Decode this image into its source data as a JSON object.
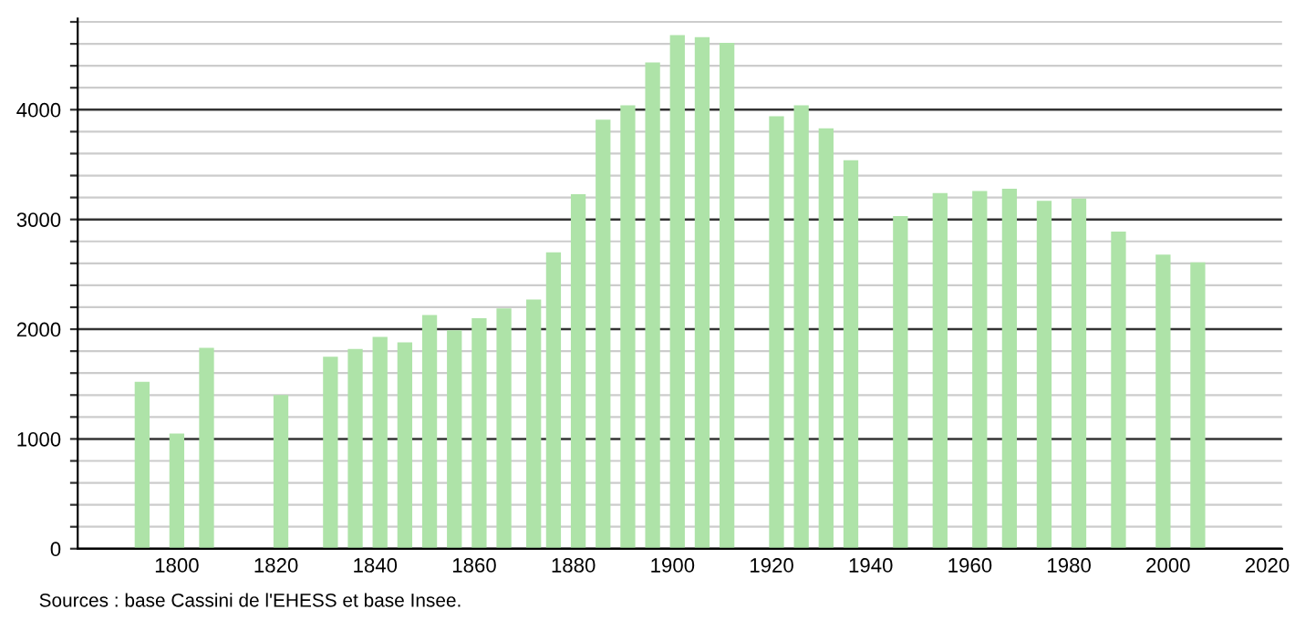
{
  "chart_data": {
    "type": "bar",
    "x": [
      1793,
      1800,
      1806,
      1821,
      1831,
      1836,
      1841,
      1846,
      1851,
      1856,
      1861,
      1866,
      1872,
      1876,
      1881,
      1886,
      1891,
      1896,
      1901,
      1906,
      1911,
      1921,
      1926,
      1931,
      1936,
      1946,
      1954,
      1962,
      1968,
      1975,
      1982,
      1990,
      1999,
      2006
    ],
    "values": [
      1520,
      1050,
      1830,
      1400,
      1750,
      1820,
      1930,
      1880,
      2130,
      1990,
      2100,
      2190,
      2270,
      2700,
      3230,
      3910,
      4040,
      4430,
      4680,
      4660,
      4610,
      3940,
      4040,
      3830,
      3540,
      3030,
      3240,
      3260,
      3280,
      3170,
      3190,
      2890,
      2680,
      2610
    ],
    "color": "#aee3a8",
    "xlim": [
      1780,
      2023
    ],
    "xticks": [
      1800,
      1820,
      1840,
      1860,
      1880,
      1900,
      1920,
      1940,
      1960,
      1980,
      2000,
      2020
    ],
    "ylim": [
      0,
      4830
    ],
    "yticks": [
      0,
      {
        "value": 200,
        "label": null
      },
      {
        "value": 400,
        "label": null
      },
      {
        "value": 600,
        "label": null
      },
      {
        "value": 800,
        "label": null
      },
      1000,
      {
        "value": 1200,
        "label": null
      },
      {
        "value": 1400,
        "label": null
      },
      {
        "value": 1600,
        "label": null
      },
      {
        "value": 1800,
        "label": null
      },
      2000,
      {
        "value": 2200,
        "label": null
      },
      {
        "value": 2400,
        "label": null
      },
      {
        "value": 2600,
        "label": null
      },
      {
        "value": 2800,
        "label": null
      },
      3000,
      {
        "value": 3200,
        "label": null
      },
      {
        "value": 3400,
        "label": null
      },
      {
        "value": 3600,
        "label": null
      },
      {
        "value": 3800,
        "label": null
      },
      4000,
      {
        "value": 4200,
        "label": null
      },
      {
        "value": 4400,
        "label": null
      },
      {
        "value": 4600,
        "label": null
      },
      {
        "value": 4800,
        "label": null
      }
    ],
    "grid": "y",
    "annotations": [
      "Sources : base Cassini de l'EHESS et base Insee."
    ]
  }
}
